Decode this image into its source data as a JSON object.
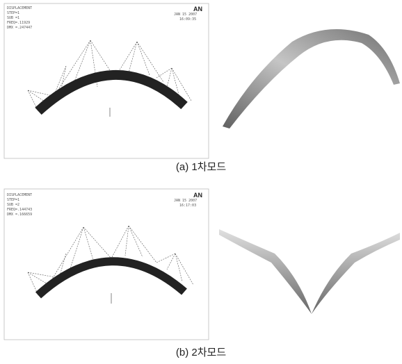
{
  "panels": [
    {
      "caption": "(a) 1차모드",
      "screen": {
        "logo": "AN",
        "date": "JAN 15 2007",
        "time": "16:09:35",
        "info": [
          "DISPLACEMENT",
          "STEP=1",
          "SUB =1",
          "FREQ=.11929",
          "DMX =.247447"
        ]
      }
    },
    {
      "caption": "(b) 2차모드",
      "screen": {
        "logo": "AN",
        "date": "JAN 15 2007",
        "time": "16:17:03",
        "info": [
          "DISPLACEMENT",
          "STEP=1",
          "SUB =2",
          "FREQ=.144743",
          "DMX =.166659"
        ]
      }
    }
  ]
}
